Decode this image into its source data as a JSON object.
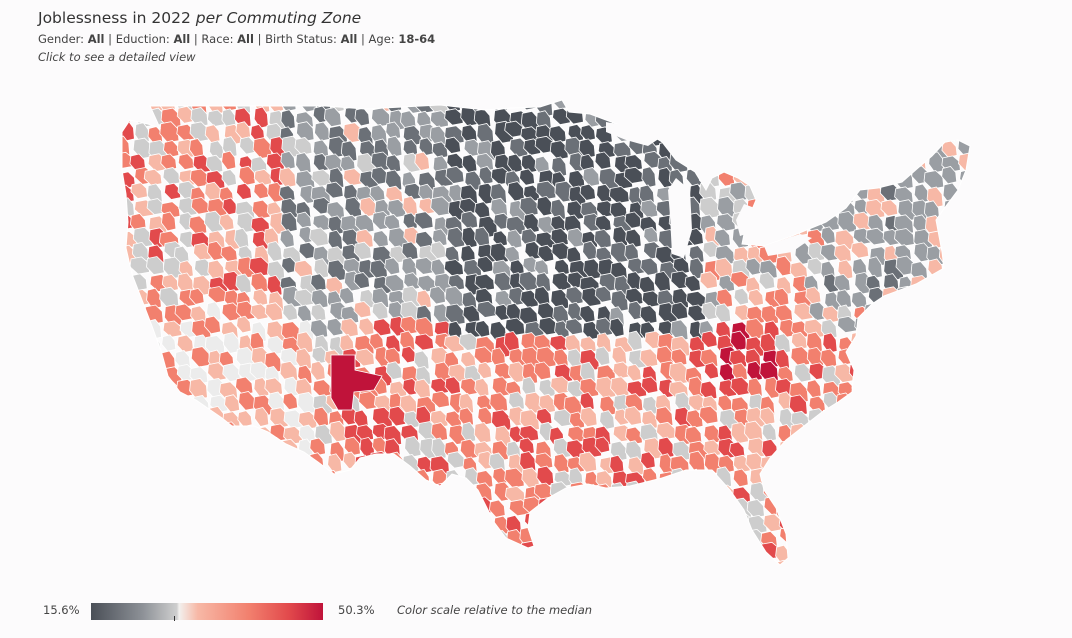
{
  "header": {
    "title_main": "Joblessness in 2022 ",
    "title_italic": "per Commuting Zone",
    "filters": [
      {
        "label": "Gender: ",
        "value": "All"
      },
      {
        "label": " | Eduction: ",
        "value": "All"
      },
      {
        "label": " | Race: ",
        "value": "All"
      },
      {
        "label": " | Birth Status: ",
        "value": "All"
      },
      {
        "label": " | Age: ",
        "value": "18-64"
      }
    ],
    "hint": "Click to see a detailed view"
  },
  "legend": {
    "min": "15.6%",
    "max": "50.3%",
    "note": "Color scale relative to the median"
  },
  "colors": {
    "darkest": "#4a4f57",
    "dark_gray": "#6b7077",
    "mid_gray": "#9a9ea3",
    "light_gray": "#cdcdcd",
    "neutral": "#ececec",
    "light_salmon": "#f7b8a6",
    "salmon": "#f2806e",
    "red": "#e24a4c",
    "darkest_red": "#c0133a",
    "region_borders": "#ffffff"
  }
}
